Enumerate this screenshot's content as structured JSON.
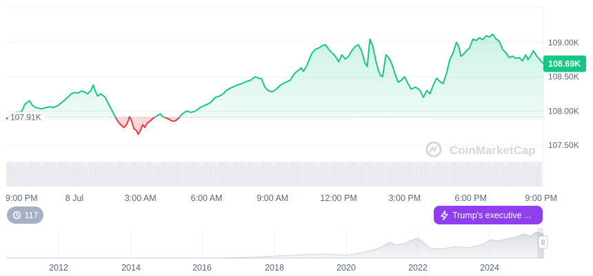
{
  "chart_data": {
    "type": "area",
    "baseline_value": 107.91,
    "baseline_label": "107.91K",
    "current_value": 108.69,
    "current_label": "108.69K",
    "ylim": [
      107.28,
      109.52
    ],
    "y_ticks": [
      {
        "value": 109.0,
        "label": "109.00K"
      },
      {
        "value": 108.5,
        "label": "108.50K"
      },
      {
        "value": 108.0,
        "label": "108.00K"
      },
      {
        "value": 107.5,
        "label": "107.50K"
      }
    ],
    "x_unit": "hours since first tick",
    "xlim": [
      -0.1,
      24.3
    ],
    "x_ticks": [
      {
        "value": 0,
        "label": "9:00 PM"
      },
      {
        "value": 3,
        "label": "8 Jul"
      },
      {
        "value": 6,
        "label": "3:00 AM"
      },
      {
        "value": 9,
        "label": "6:00 AM"
      },
      {
        "value": 12,
        "label": "9:00 AM"
      },
      {
        "value": 15,
        "label": "12:00 PM"
      },
      {
        "value": 18,
        "label": "3:00 PM"
      },
      {
        "value": 21,
        "label": "6:00 PM"
      },
      {
        "value": 24,
        "label": "9:00 PM"
      }
    ],
    "series": [
      {
        "values": [
          [
            -0.1,
            107.88
          ],
          [
            0.15,
            107.95
          ],
          [
            0.35,
            107.98
          ],
          [
            0.6,
            107.99
          ],
          [
            0.75,
            108.1
          ],
          [
            0.95,
            108.15
          ],
          [
            1.1,
            108.08
          ],
          [
            1.25,
            108.05
          ],
          [
            1.5,
            108.03
          ],
          [
            1.7,
            108.05
          ],
          [
            1.9,
            108.06
          ],
          [
            2.05,
            108.05
          ],
          [
            2.25,
            108.08
          ],
          [
            2.4,
            108.12
          ],
          [
            2.55,
            108.16
          ],
          [
            2.7,
            108.2
          ],
          [
            2.85,
            108.25
          ],
          [
            3.0,
            108.27
          ],
          [
            3.15,
            108.26
          ],
          [
            3.3,
            108.29
          ],
          [
            3.45,
            108.28
          ],
          [
            3.6,
            108.25
          ],
          [
            3.75,
            108.3
          ],
          [
            3.85,
            108.38
          ],
          [
            3.95,
            108.29
          ],
          [
            4.05,
            108.22
          ],
          [
            4.2,
            108.25
          ],
          [
            4.4,
            108.2
          ],
          [
            4.55,
            108.1
          ],
          [
            4.75,
            107.98
          ],
          [
            4.95,
            107.86
          ],
          [
            5.1,
            107.8
          ],
          [
            5.25,
            107.76
          ],
          [
            5.4,
            107.82
          ],
          [
            5.5,
            107.92
          ],
          [
            5.6,
            107.85
          ],
          [
            5.7,
            107.74
          ],
          [
            5.8,
            107.72
          ],
          [
            5.9,
            107.66
          ],
          [
            6.0,
            107.72
          ],
          [
            6.1,
            107.8
          ],
          [
            6.2,
            107.76
          ],
          [
            6.3,
            107.82
          ],
          [
            6.45,
            107.86
          ],
          [
            6.6,
            107.9
          ],
          [
            6.75,
            107.93
          ],
          [
            6.9,
            107.96
          ],
          [
            7.0,
            107.92
          ],
          [
            7.15,
            107.9
          ],
          [
            7.3,
            107.88
          ],
          [
            7.45,
            107.85
          ],
          [
            7.6,
            107.86
          ],
          [
            7.75,
            107.9
          ],
          [
            7.9,
            107.96
          ],
          [
            8.1,
            108.0
          ],
          [
            8.3,
            107.98
          ],
          [
            8.5,
            108.0
          ],
          [
            8.7,
            108.05
          ],
          [
            8.9,
            108.08
          ],
          [
            9.05,
            108.1
          ],
          [
            9.2,
            108.13
          ],
          [
            9.4,
            108.2
          ],
          [
            9.6,
            108.22
          ],
          [
            9.75,
            108.25
          ],
          [
            9.9,
            108.3
          ],
          [
            10.05,
            108.33
          ],
          [
            10.2,
            108.35
          ],
          [
            10.4,
            108.38
          ],
          [
            10.6,
            108.4
          ],
          [
            10.8,
            108.43
          ],
          [
            11.0,
            108.45
          ],
          [
            11.2,
            108.5
          ],
          [
            11.35,
            108.48
          ],
          [
            11.5,
            108.47
          ],
          [
            11.65,
            108.35
          ],
          [
            11.8,
            108.3
          ],
          [
            12.0,
            108.28
          ],
          [
            12.2,
            108.33
          ],
          [
            12.4,
            108.39
          ],
          [
            12.6,
            108.42
          ],
          [
            12.8,
            108.45
          ],
          [
            13.0,
            108.55
          ],
          [
            13.2,
            108.6
          ],
          [
            13.3,
            108.63
          ],
          [
            13.4,
            108.58
          ],
          [
            13.55,
            108.66
          ],
          [
            13.7,
            108.78
          ],
          [
            13.8,
            108.85
          ],
          [
            13.95,
            108.9
          ],
          [
            14.1,
            108.92
          ],
          [
            14.25,
            108.95
          ],
          [
            14.4,
            108.97
          ],
          [
            14.55,
            108.9
          ],
          [
            14.7,
            108.85
          ],
          [
            14.85,
            108.8
          ],
          [
            15.0,
            108.72
          ],
          [
            15.15,
            108.82
          ],
          [
            15.3,
            108.76
          ],
          [
            15.45,
            108.8
          ],
          [
            15.6,
            108.88
          ],
          [
            15.75,
            108.94
          ],
          [
            15.9,
            108.97
          ],
          [
            16.05,
            108.87
          ],
          [
            16.2,
            108.7
          ],
          [
            16.3,
            108.65
          ],
          [
            16.42,
            109.05
          ],
          [
            16.55,
            108.95
          ],
          [
            16.7,
            108.72
          ],
          [
            16.8,
            108.6
          ],
          [
            16.9,
            108.52
          ],
          [
            17.0,
            108.5
          ],
          [
            17.15,
            108.82
          ],
          [
            17.3,
            108.77
          ],
          [
            17.45,
            108.66
          ],
          [
            17.55,
            108.55
          ],
          [
            17.7,
            108.42
          ],
          [
            17.85,
            108.45
          ],
          [
            18.0,
            108.5
          ],
          [
            18.15,
            108.4
          ],
          [
            18.3,
            108.32
          ],
          [
            18.5,
            108.35
          ],
          [
            18.7,
            108.3
          ],
          [
            18.85,
            108.2
          ],
          [
            19.0,
            108.3
          ],
          [
            19.15,
            108.25
          ],
          [
            19.3,
            108.38
          ],
          [
            19.45,
            108.48
          ],
          [
            19.6,
            108.43
          ],
          [
            19.75,
            108.4
          ],
          [
            19.9,
            108.55
          ],
          [
            20.05,
            108.75
          ],
          [
            20.2,
            108.85
          ],
          [
            20.35,
            109.0
          ],
          [
            20.45,
            108.95
          ],
          [
            20.55,
            108.8
          ],
          [
            20.65,
            108.82
          ],
          [
            20.8,
            108.88
          ],
          [
            20.95,
            108.92
          ],
          [
            21.1,
            109.05
          ],
          [
            21.25,
            109.03
          ],
          [
            21.4,
            109.07
          ],
          [
            21.55,
            109.04
          ],
          [
            21.7,
            109.1
          ],
          [
            21.85,
            109.08
          ],
          [
            22.0,
            109.12
          ],
          [
            22.15,
            109.05
          ],
          [
            22.3,
            109.02
          ],
          [
            22.45,
            108.9
          ],
          [
            22.6,
            108.85
          ],
          [
            22.75,
            108.78
          ],
          [
            22.9,
            108.8
          ],
          [
            23.05,
            108.77
          ],
          [
            23.2,
            108.78
          ],
          [
            23.35,
            108.73
          ],
          [
            23.5,
            108.82
          ],
          [
            23.6,
            108.75
          ],
          [
            23.75,
            108.82
          ],
          [
            23.85,
            108.88
          ],
          [
            24.0,
            108.8
          ],
          [
            24.15,
            108.75
          ],
          [
            24.3,
            108.69
          ]
        ]
      }
    ]
  },
  "navigator": {
    "year_ticks": [
      "2012",
      "2014",
      "2016",
      "2018",
      "2020",
      "2022",
      "2024"
    ]
  },
  "watermark": "CoinMarketCap",
  "events_count": {
    "icon": "history-icon",
    "value": "117"
  },
  "event_marker": {
    "icon": "lightning-icon",
    "label": "Trump's executive ..."
  },
  "colors": {
    "up": "#16c784",
    "down": "#ea3943",
    "badge": "#16c784",
    "event": "#8e3ff0",
    "count": "#a6b0c3"
  }
}
